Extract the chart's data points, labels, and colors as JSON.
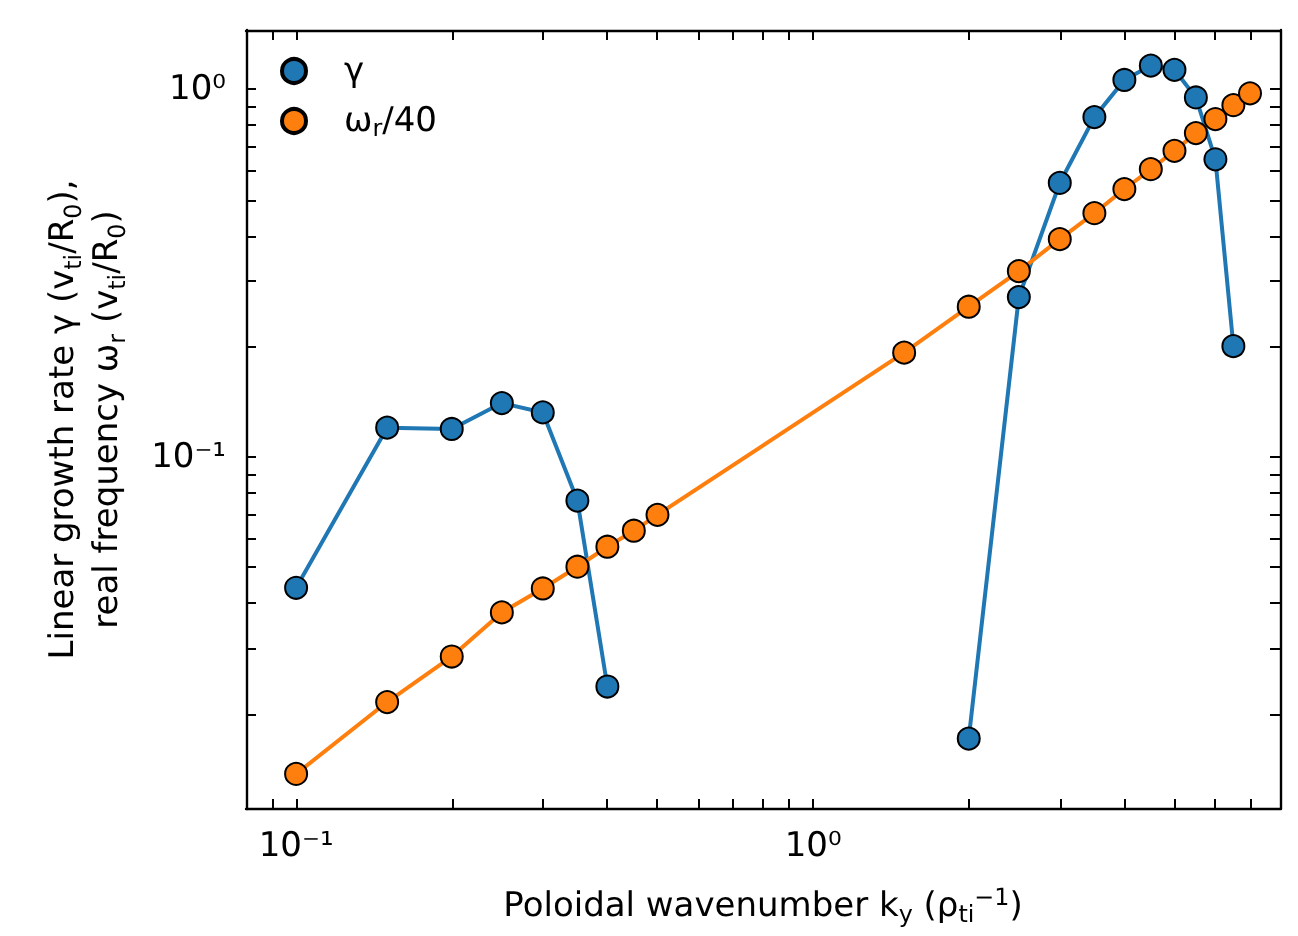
{
  "chart_data": {
    "type": "line",
    "xlabel": "Poloidal wavenumber k$_{y}$ (ρ$_{ti}$$^{−1}$)",
    "ylabel": "Linear growth rate γ (v$_{ti}$/R$_{0}$),\nreal frequency ω$_{r}$ (v$_{ti}$/R$_{0}$)",
    "log": "xy",
    "legend": "top left",
    "marker": "circle",
    "line_style": "solid",
    "grid": false,
    "xlim": [
      0.08,
      8
    ],
    "ylim": [
      0.011,
      1.45
    ],
    "xticks": [
      {
        "value": 0.09,
        "label": null
      },
      {
        "value": 0.1,
        "label": "10⁻¹"
      },
      {
        "value": 0.2,
        "label": null
      },
      {
        "value": 0.3,
        "label": null
      },
      {
        "value": 0.4,
        "label": null
      },
      {
        "value": 0.5,
        "label": null
      },
      {
        "value": 0.6,
        "label": null
      },
      {
        "value": 0.7,
        "label": null
      },
      {
        "value": 0.8,
        "label": null
      },
      {
        "value": 0.9,
        "label": null
      },
      {
        "value": 1,
        "label": "10⁰"
      },
      {
        "value": 2,
        "label": null
      },
      {
        "value": 3,
        "label": null
      },
      {
        "value": 4,
        "label": null
      },
      {
        "value": 5,
        "label": null
      },
      {
        "value": 6,
        "label": null
      },
      {
        "value": 7,
        "label": null
      }
    ],
    "yticks": [
      {
        "value": 0.02,
        "label": null
      },
      {
        "value": 0.03,
        "label": null
      },
      {
        "value": 0.04,
        "label": null
      },
      {
        "value": 0.05,
        "label": null
      },
      {
        "value": 0.06,
        "label": null
      },
      {
        "value": 0.07,
        "label": null
      },
      {
        "value": 0.08,
        "label": null
      },
      {
        "value": 0.09,
        "label": null
      },
      {
        "value": 0.1,
        "label": "10⁻¹"
      },
      {
        "value": 0.2,
        "label": null
      },
      {
        "value": 0.3,
        "label": null
      },
      {
        "value": 0.4,
        "label": null
      },
      {
        "value": 0.5,
        "label": null
      },
      {
        "value": 0.6,
        "label": null
      },
      {
        "value": 0.7,
        "label": null
      },
      {
        "value": 0.8,
        "label": null
      },
      {
        "value": 0.9,
        "label": null
      },
      {
        "value": 1,
        "label": "10⁰"
      }
    ],
    "series": [
      {
        "name": "γ",
        "color": "#1f77b4",
        "x": [
          0.1,
          0.15,
          0.2,
          0.25,
          0.3,
          0.35,
          0.4
        ],
        "values": [
          0.044,
          0.12,
          0.119,
          0.14,
          0.132,
          0.076,
          0.0237
        ]
      },
      {
        "color": "#1f77b4",
        "x": [
          2.0,
          2.5,
          3.0,
          3.5,
          4.0,
          4.5,
          5.0,
          5.5,
          6.0,
          6.5
        ],
        "values": [
          0.0171,
          0.272,
          0.556,
          0.84,
          1.06,
          1.16,
          1.13,
          0.95,
          0.645,
          0.2
        ]
      },
      {
        "name": "ω$_{r}$/40",
        "color": "#ff7f0e",
        "x": [
          0.1,
          0.15,
          0.2,
          0.25,
          0.3,
          0.35,
          0.4,
          0.45,
          0.5,
          1.5,
          2.0,
          2.5,
          3.0,
          3.5,
          4.0,
          4.5,
          5.0,
          5.5,
          6.0,
          6.5,
          7.0
        ],
        "values": [
          0.0137,
          0.0215,
          0.0286,
          0.0377,
          0.0438,
          0.0502,
          0.0569,
          0.0629,
          0.0695,
          0.192,
          0.256,
          0.32,
          0.391,
          0.46,
          0.535,
          0.606,
          0.68,
          0.76,
          0.83,
          0.905,
          0.975
        ]
      }
    ]
  }
}
